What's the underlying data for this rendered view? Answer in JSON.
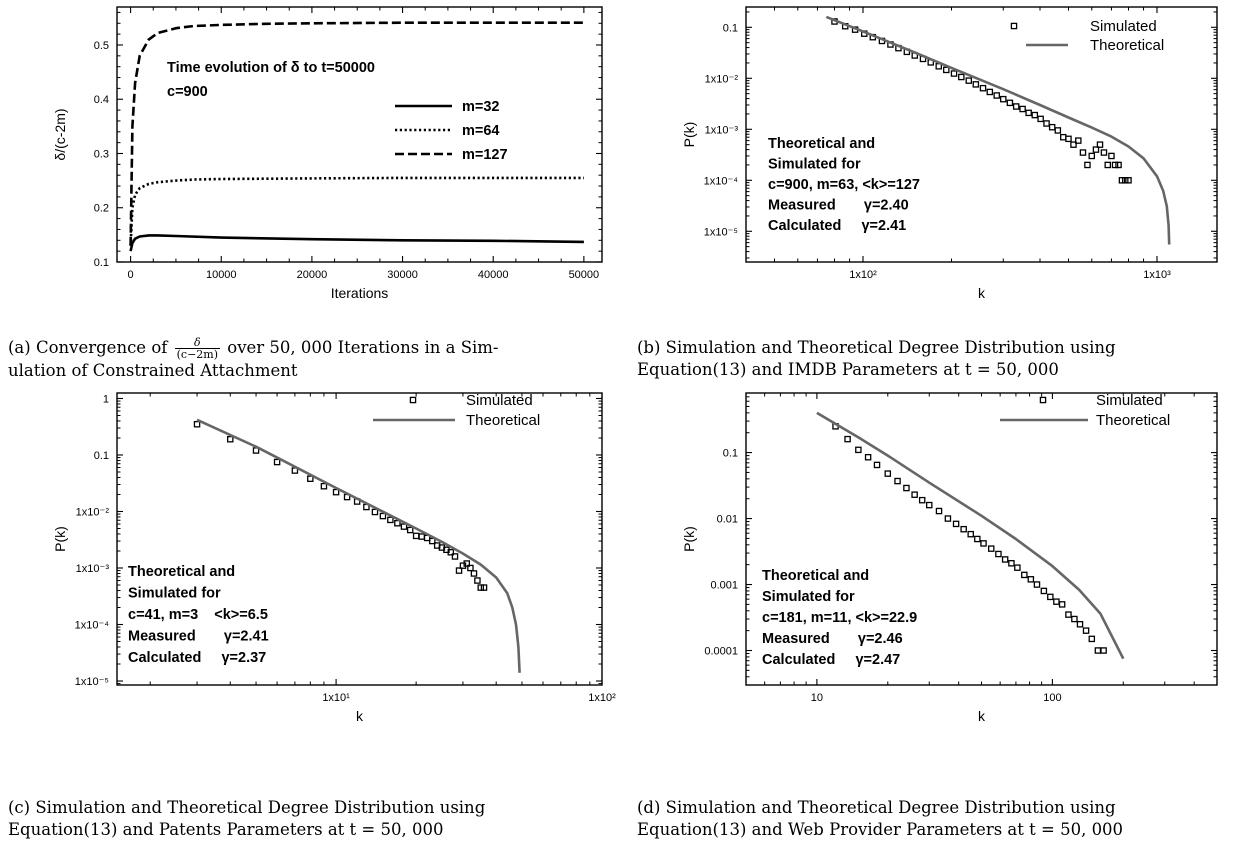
{
  "chart_data": [
    {
      "id": "a",
      "type": "line",
      "xlabel": "Iterations",
      "ylabel": "δ/(c-2m)",
      "xlim": [
        -1500,
        52000
      ],
      "ylim": [
        0.1,
        0.57
      ],
      "xscale": "linear",
      "yscale": "linear",
      "xticks": [
        0,
        10000,
        20000,
        30000,
        40000,
        50000
      ],
      "xticklabels": [
        "0",
        "10000",
        "20000",
        "30000",
        "40000",
        "50000"
      ],
      "yticks": [
        0.1,
        0.2,
        0.3,
        0.4,
        0.5
      ],
      "yticklabels": [
        "0.1",
        "0.2",
        "0.3",
        "0.4",
        "0.5"
      ],
      "annotations": [
        "Time evolution of δ to t=50000",
        "c=900"
      ],
      "legend": "right",
      "series": [
        {
          "name": "m=32",
          "style": "solid",
          "x": [
            0,
            200,
            500,
            1000,
            2000,
            3000,
            5000,
            10000,
            20000,
            30000,
            40000,
            50000
          ],
          "y": [
            0.12,
            0.135,
            0.143,
            0.147,
            0.149,
            0.149,
            0.148,
            0.145,
            0.142,
            0.14,
            0.139,
            0.137
          ]
        },
        {
          "name": "m=64",
          "style": "dotted",
          "x": [
            0,
            200,
            500,
            1000,
            2000,
            3000,
            5000,
            7000,
            10000,
            20000,
            30000,
            40000,
            50000
          ],
          "y": [
            0.13,
            0.2,
            0.224,
            0.236,
            0.244,
            0.247,
            0.25,
            0.252,
            0.253,
            0.254,
            0.255,
            0.255,
            0.255
          ]
        },
        {
          "name": "m=127",
          "style": "dashed",
          "x": [
            0,
            200,
            500,
            1000,
            2000,
            3000,
            5000,
            7000,
            10000,
            15000,
            20000,
            30000,
            40000,
            50000
          ],
          "y": [
            0.13,
            0.35,
            0.43,
            0.48,
            0.51,
            0.522,
            0.531,
            0.535,
            0.537,
            0.539,
            0.54,
            0.541,
            0.541,
            0.541
          ]
        }
      ]
    },
    {
      "id": "b",
      "type": "scatter",
      "xlabel": "k",
      "ylabel": "P(k)",
      "xlim": [
        40,
        1600
      ],
      "ylim": [
        2.5e-06,
        0.25
      ],
      "xscale": "log",
      "yscale": "log",
      "xticks": [
        100,
        1000
      ],
      "xticklabels": [
        "1x10²",
        "1x10³"
      ],
      "yticks": [
        0.1,
        0.01,
        0.001,
        0.0001,
        1e-05
      ],
      "yticklabels": [
        "0.1",
        "1x10⁻²",
        "1x10⁻³",
        "1x10⁻⁴",
        "1x10⁻⁵"
      ],
      "annotations": [
        "Theoretical and",
        "Simulated for",
        "c=900, m=63, <k>=127",
        "Measured       γ=2.40",
        "Calculated     γ=2.41"
      ],
      "legend": "top-right",
      "series": [
        {
          "name": "Simulated",
          "style": "square-marker",
          "x": [
            80,
            87,
            94,
            101,
            108,
            116,
            124,
            132,
            141,
            150,
            160,
            170,
            181,
            192,
            204,
            216,
            229,
            242,
            256,
            270,
            285,
            300,
            316,
            332,
            349,
            366,
            384,
            402,
            421,
            440,
            460,
            480,
            500,
            520,
            540,
            560,
            580,
            600,
            620,
            640,
            660,
            680,
            700,
            720,
            740,
            760,
            780,
            800
          ],
          "y": [
            0.13,
            0.105,
            0.09,
            0.075,
            0.064,
            0.054,
            0.046,
            0.039,
            0.033,
            0.028,
            0.024,
            0.0205,
            0.0172,
            0.0146,
            0.0124,
            0.0106,
            0.009,
            0.0076,
            0.0064,
            0.0054,
            0.0046,
            0.0039,
            0.0033,
            0.0028,
            0.0025,
            0.0021,
            0.0019,
            0.0016,
            0.0013,
            0.0011,
            0.00095,
            0.0007,
            0.00065,
            0.0005,
            0.0006,
            0.00035,
            0.0002,
            0.0003,
            0.0004,
            0.0005,
            0.00035,
            0.0002,
            0.0003,
            0.0002,
            0.0002,
            0.0001,
            0.0001,
            0.0001
          ]
        },
        {
          "name": "Theoretical",
          "style": "solid",
          "x": [
            75,
            100,
            150,
            200,
            300,
            400,
            500,
            600,
            700,
            800,
            900,
            1000,
            1050,
            1080,
            1095,
            1100
          ],
          "y": [
            0.16,
            0.083,
            0.032,
            0.016,
            0.0061,
            0.003,
            0.0017,
            0.00108,
            0.00072,
            0.00046,
            0.00027,
            0.00012,
            6.2e-05,
            3.1e-05,
            1.3e-05,
            5.5e-06
          ]
        }
      ]
    },
    {
      "id": "c",
      "type": "scatter",
      "xlabel": "k",
      "ylabel": "P(k)",
      "xlim": [
        1.5,
        100
      ],
      "ylim": [
        8.5e-06,
        1.25
      ],
      "xscale": "log",
      "yscale": "log",
      "xticks": [
        10,
        100
      ],
      "xticklabels": [
        "1x10¹",
        "1x10²"
      ],
      "yticks": [
        1,
        0.1,
        0.01,
        0.001,
        0.0001,
        1e-05
      ],
      "yticklabels": [
        "1",
        "0.1",
        "1x10⁻²",
        "1x10⁻³",
        "1x10⁻⁴",
        "1x10⁻⁵"
      ],
      "annotations": [
        "Theoretical and",
        "Simulated for",
        "c=41, m=3    <k>=6.5",
        "Measured       γ=2.41",
        "Calculated     γ=2.37"
      ],
      "legend": "top-right",
      "series": [
        {
          "name": "Simulated",
          "style": "square-marker",
          "x": [
            3,
            4,
            5,
            6,
            7,
            8,
            9,
            10,
            11,
            12,
            13,
            14,
            15,
            16,
            17,
            18,
            19,
            20,
            21,
            22,
            23,
            24,
            25,
            26,
            27,
            28,
            29,
            30,
            31,
            32,
            33,
            34,
            35,
            36
          ],
          "y": [
            0.35,
            0.19,
            0.12,
            0.075,
            0.053,
            0.038,
            0.028,
            0.022,
            0.018,
            0.015,
            0.012,
            0.0098,
            0.0083,
            0.0071,
            0.0062,
            0.0054,
            0.0047,
            0.0037,
            0.0036,
            0.0034,
            0.003,
            0.0025,
            0.0023,
            0.0021,
            0.0019,
            0.0016,
            0.0009,
            0.0011,
            0.0012,
            0.001,
            0.0008,
            0.0006,
            0.00045,
            0.00045
          ]
        },
        {
          "name": "Theoretical",
          "style": "solid",
          "x": [
            3,
            5,
            10,
            15,
            20,
            25,
            30,
            35,
            40,
            44,
            46,
            47.5,
            48.5,
            49
          ],
          "y": [
            0.42,
            0.14,
            0.026,
            0.0099,
            0.005,
            0.0029,
            0.0018,
            0.00115,
            0.00068,
            0.00036,
            0.0002,
            0.0001,
            4e-05,
            1.4e-05
          ]
        }
      ]
    },
    {
      "id": "d",
      "type": "scatter",
      "xlabel": "k",
      "ylabel": "P(k)",
      "xlim": [
        5,
        500
      ],
      "ylim": [
        3e-05,
        0.8
      ],
      "xscale": "log",
      "yscale": "log",
      "xticks": [
        10,
        100
      ],
      "xticklabels": [
        "10",
        "100"
      ],
      "yticks": [
        0.1,
        0.01,
        0.001,
        0.0001
      ],
      "yticklabels": [
        "0.1",
        "0.01",
        "0.001",
        "0.0001"
      ],
      "annotations": [
        "Theoretical and",
        "Simulated for",
        "c=181, m=11, <k>=22.9",
        "Measured       γ=2.46",
        "Calculated     γ=2.47"
      ],
      "legend": "top-right",
      "series": [
        {
          "name": "Simulated",
          "style": "square-marker",
          "x": [
            12,
            13.5,
            15,
            16.5,
            18,
            20,
            22,
            24,
            26,
            28,
            30,
            33,
            36,
            39,
            42,
            45,
            48,
            51,
            55,
            59,
            63,
            67,
            71,
            76,
            81,
            86,
            92,
            98,
            104,
            110,
            117,
            124,
            131,
            139,
            147,
            156,
            165
          ],
          "y": [
            0.25,
            0.16,
            0.11,
            0.085,
            0.065,
            0.048,
            0.037,
            0.029,
            0.023,
            0.019,
            0.016,
            0.013,
            0.01,
            0.0083,
            0.0069,
            0.0058,
            0.0049,
            0.0042,
            0.0035,
            0.0029,
            0.0024,
            0.0021,
            0.0018,
            0.0014,
            0.0012,
            0.001,
            0.0008,
            0.00065,
            0.00055,
            0.0005,
            0.00035,
            0.0003,
            0.00025,
            0.0002,
            0.00015,
            0.0001,
            0.0001
          ]
        },
        {
          "name": "Theoretical",
          "style": "solid",
          "x": [
            10,
            15,
            20,
            30,
            50,
            70,
            100,
            130,
            160,
            200
          ],
          "y": [
            0.4,
            0.17,
            0.09,
            0.035,
            0.011,
            0.0049,
            0.0019,
            0.00083,
            0.00036,
            7.5e-05
          ]
        }
      ]
    }
  ],
  "captions": {
    "a": {
      "prefix": "(a) Convergence of",
      "frac_num": "δ",
      "frac_den": "(c−2m)",
      "line1_rest": "over 50, 000 Iterations in a Sim-",
      "line2": "ulation of Constrained Attachment"
    },
    "b": {
      "line1": "(b) Simulation and Theoretical Degree Distribution using",
      "line2": "Equation(13) and IMDB Parameters at t = 50, 000"
    },
    "c": {
      "line1": "(c) Simulation and Theoretical Degree Distribution using",
      "line2": "Equation(13) and Patents Parameters at t = 50, 000"
    },
    "d": {
      "line1": "(d) Simulation and Theoretical Degree Distribution using",
      "line2": "Equation(13) and Web Provider Parameters at t = 50, 000"
    }
  },
  "colors": {
    "ink": "#000000",
    "theory_line": "#666666"
  }
}
